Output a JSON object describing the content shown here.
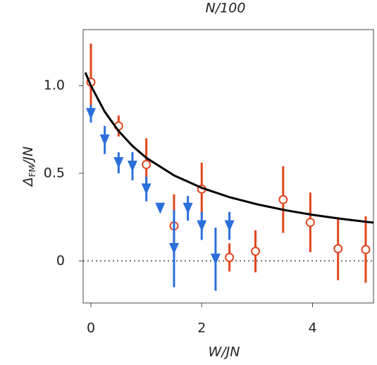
{
  "chart_data": {
    "type": "scatter",
    "title": "N/100",
    "xlabel": "W/JN",
    "ylabel": [
      "Δ",
      "FM",
      "/JN"
    ],
    "xlim": [
      -0.14,
      5.1
    ],
    "ylim": [
      -0.24,
      1.32
    ],
    "xticks": [
      0,
      2,
      4
    ],
    "yticks": [
      0,
      0.5,
      {
        "value": 1,
        "label": "1.0"
      }
    ],
    "grid": false,
    "reference_line": 0,
    "series": [
      {
        "marker": "circle",
        "color": "#e0461e",
        "x": [
          0,
          0.5,
          1.0,
          1.5,
          2.0,
          2.5,
          2.97,
          3.47,
          3.96,
          4.46,
          4.96
        ],
        "values": [
          1.02,
          0.77,
          0.55,
          0.2,
          0.41,
          0.02,
          0.055,
          0.35,
          0.22,
          0.07,
          0.065
        ],
        "yerr": [
          0.22,
          0.06,
          0.15,
          0.18,
          0.15,
          0.08,
          0.12,
          0.19,
          0.17,
          0.18,
          0.19
        ]
      },
      {
        "marker": "triangle-down",
        "color": "#2a6fdb",
        "x": [
          0,
          0.25,
          0.5,
          0.75,
          1.0,
          1.25,
          1.5,
          1.75,
          2.0,
          2.25,
          2.5
        ],
        "values": [
          0.84,
          0.69,
          0.56,
          0.54,
          0.41,
          0.3,
          0.07,
          0.3,
          0.2,
          0.01,
          0.2
        ],
        "yerr": [
          0.05,
          0.08,
          0.06,
          0.08,
          0.07,
          0.02,
          0.22,
          0.07,
          0.08,
          0.18,
          0.08
        ]
      },
      {
        "marker": "line",
        "color": "#000000",
        "x": [
          -0.1,
          0,
          0.25,
          0.5,
          0.75,
          1,
          1.5,
          2,
          2.5,
          3,
          3.5,
          4,
          4.5,
          5,
          5.1
        ],
        "values": [
          1.075,
          1,
          0.851,
          0.741,
          0.656,
          0.588,
          0.488,
          0.417,
          0.364,
          0.323,
          0.29,
          0.263,
          0.241,
          0.222,
          0.219
        ]
      }
    ]
  }
}
